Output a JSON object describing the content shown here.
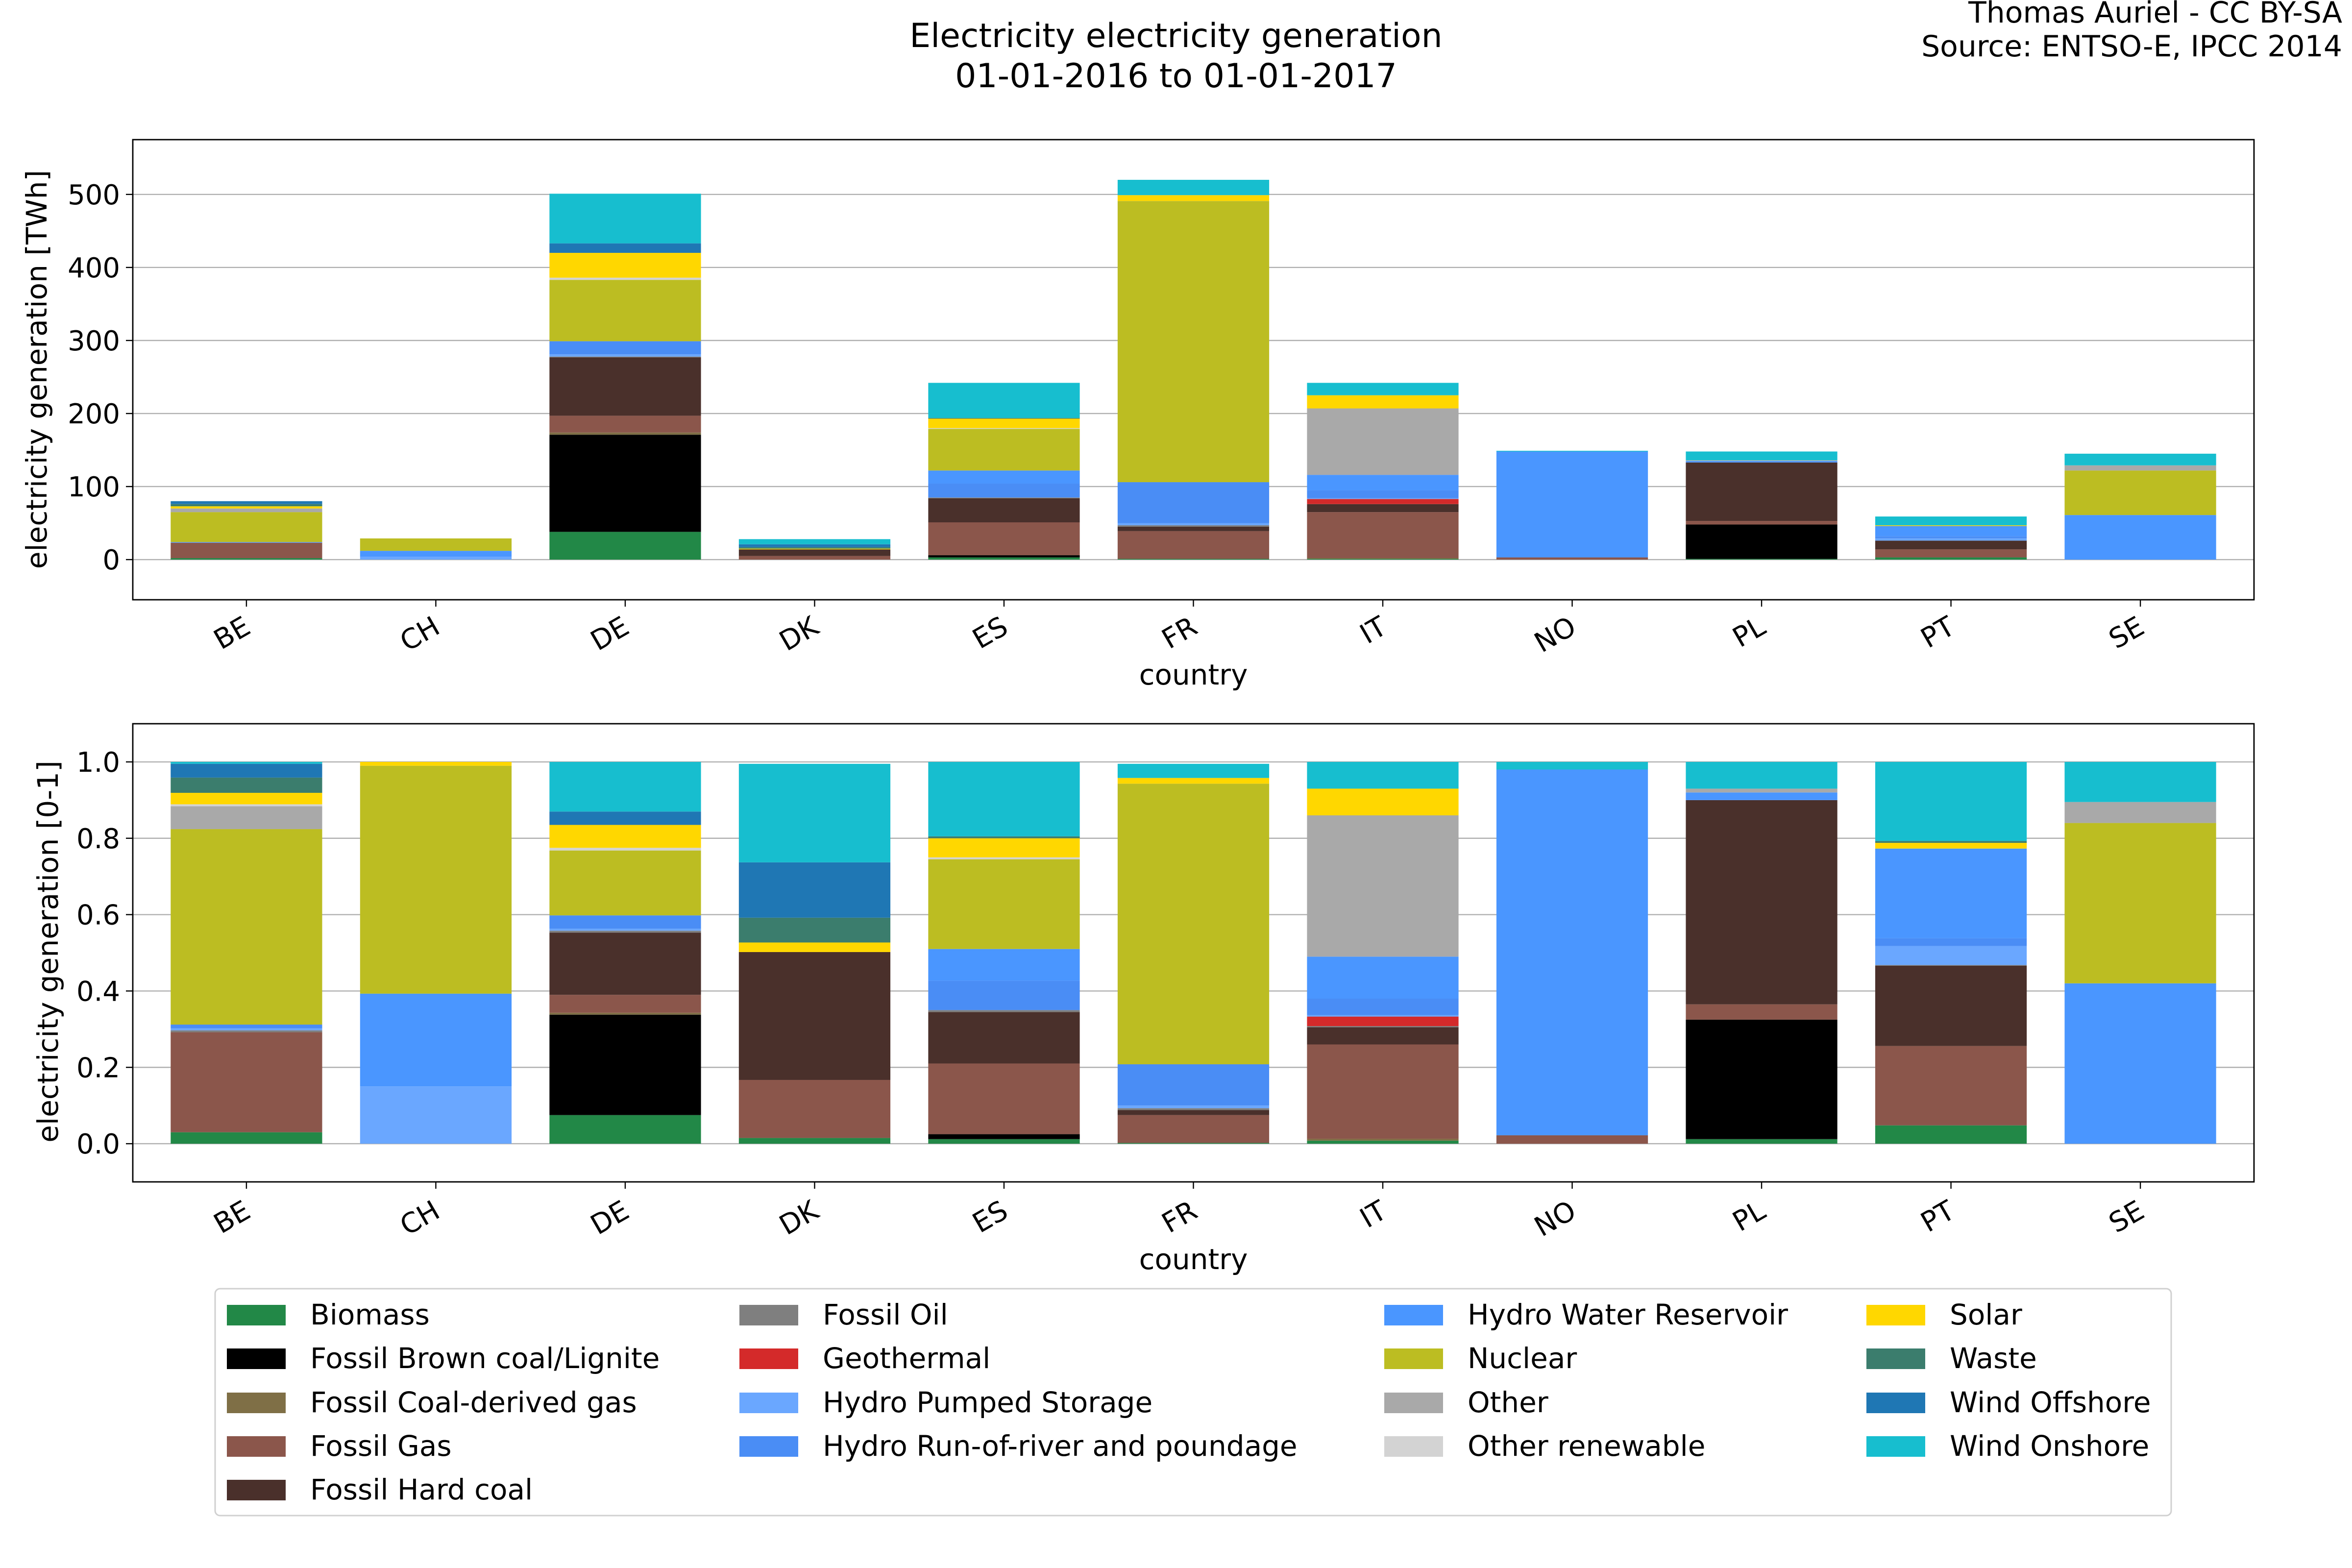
{
  "header": {
    "title_line1": "Electricity electricity generation",
    "title_line2": "01-01-2016 to 01-01-2017",
    "credit_line1": "Thomas Auriel - CC BY-SA",
    "credit_line2": "Source: ENTSO-E, IPCC 2014"
  },
  "legend": {
    "entries": [
      {
        "label": "Biomass",
        "color": "#228847"
      },
      {
        "label": "Fossil Brown coal/Lignite",
        "color": "#000000"
      },
      {
        "label": "Fossil Coal-derived gas",
        "color": "#7f6f46"
      },
      {
        "label": "Fossil Gas",
        "color": "#8b564b"
      },
      {
        "label": "Fossil Hard coal",
        "color": "#4a302b"
      },
      {
        "label": "Fossil Oil",
        "color": "#7f7f7f"
      },
      {
        "label": "Geothermal",
        "color": "#d42a2a"
      },
      {
        "label": "Hydro Pumped Storage",
        "color": "#6aa7ff"
      },
      {
        "label": "Hydro Run-of-river and poundage",
        "color": "#4a8df5"
      },
      {
        "label": "Hydro Water Reservoir",
        "color": "#4a96ff"
      },
      {
        "label": "Nuclear",
        "color": "#bcbd22"
      },
      {
        "label": "Other",
        "color": "#a9a9a9"
      },
      {
        "label": "Other renewable",
        "color": "#d3d3d3"
      },
      {
        "label": "Solar",
        "color": "#ffd700"
      },
      {
        "label": "Waste",
        "color": "#3b7d6d"
      },
      {
        "label": "Wind Offshore",
        "color": "#1f77b4"
      },
      {
        "label": "Wind Onshore",
        "color": "#17becf"
      }
    ]
  },
  "chart_data": [
    {
      "type": "bar",
      "stacked": true,
      "xlabel": "country",
      "ylabel": "electricity generation [TWh]",
      "ylim": [
        -55,
        575
      ],
      "yticks": [
        0,
        100,
        200,
        300,
        400,
        500
      ],
      "grid": "y",
      "categories": [
        "BE",
        "CH",
        "DE",
        "DK",
        "ES",
        "FR",
        "IT",
        "NO",
        "PL",
        "PT",
        "SE"
      ],
      "series": [
        {
          "name": "Biomass",
          "values": [
            2,
            0,
            38,
            0,
            3,
            1,
            1,
            0,
            1,
            3,
            0
          ]
        },
        {
          "name": "Fossil Brown coal/Lignite",
          "values": [
            0,
            0,
            133,
            0,
            3,
            0,
            0,
            0,
            47,
            0,
            0
          ]
        },
        {
          "name": "Fossil Coal-derived gas",
          "values": [
            0,
            0,
            3,
            0,
            0,
            0,
            1,
            0,
            0,
            0,
            0
          ]
        },
        {
          "name": "Fossil Gas",
          "values": [
            21,
            0,
            23,
            5,
            45,
            38,
            63,
            3,
            5,
            11,
            0
          ]
        },
        {
          "name": "Fossil Hard coal",
          "values": [
            0,
            0,
            80,
            9,
            33,
            6,
            11,
            0,
            80,
            12,
            0
          ]
        },
        {
          "name": "Fossil Oil",
          "values": [
            0,
            0,
            1,
            0,
            1,
            2,
            0,
            0,
            0,
            0,
            0
          ]
        },
        {
          "name": "Geothermal",
          "values": [
            0,
            0,
            0,
            0,
            0,
            0,
            7,
            0,
            0,
            0,
            0
          ]
        },
        {
          "name": "Hydro Pumped Storage",
          "values": [
            0,
            4,
            3,
            0,
            0,
            3,
            1,
            0,
            0,
            3,
            0
          ]
        },
        {
          "name": "Hydro Run-of-river and poundage",
          "values": [
            1,
            0,
            18,
            0,
            19,
            56,
            11,
            0,
            0,
            3,
            0
          ]
        },
        {
          "name": "Hydro Water Reservoir",
          "values": [
            0,
            8,
            0,
            0,
            18,
            0,
            21,
            145,
            2,
            14,
            61
          ]
        },
        {
          "name": "Nuclear",
          "values": [
            41,
            17,
            84,
            0,
            57,
            385,
            0,
            0,
            0,
            0,
            61
          ]
        },
        {
          "name": "Other",
          "values": [
            5,
            0,
            0,
            0,
            0,
            0,
            91,
            0,
            1,
            0,
            7
          ]
        },
        {
          "name": "Other renewable",
          "values": [
            0,
            0,
            3,
            0,
            1,
            0,
            0,
            0,
            0,
            0,
            0
          ]
        },
        {
          "name": "Solar",
          "values": [
            3,
            0,
            34,
            1,
            13,
            8,
            18,
            0,
            0,
            1,
            0
          ]
        },
        {
          "name": "Waste",
          "values": [
            3,
            0,
            0,
            2,
            1,
            0,
            0,
            0,
            0,
            0,
            0
          ]
        },
        {
          "name": "Wind Offshore",
          "values": [
            4,
            0,
            13,
            4,
            0,
            0,
            0,
            0,
            0,
            0,
            0
          ]
        },
        {
          "name": "Wind Onshore",
          "values": [
            0,
            0,
            68,
            7,
            48,
            21,
            17,
            1,
            12,
            12,
            16
          ]
        }
      ]
    },
    {
      "type": "bar",
      "stacked": true,
      "xlabel": "country",
      "ylabel": "electricity generation [0-1]",
      "ylim": [
        -0.1,
        1.1
      ],
      "yticks": [
        0.0,
        0.2,
        0.4,
        0.6,
        0.8,
        1.0
      ],
      "grid": "y",
      "categories": [
        "BE",
        "CH",
        "DE",
        "DK",
        "ES",
        "FR",
        "IT",
        "NO",
        "PL",
        "PT",
        "SE"
      ],
      "series": [
        {
          "name": "Biomass",
          "values": [
            0.03,
            0,
            0.075,
            0.015,
            0.012,
            0.002,
            0.008,
            0,
            0.012,
            0.048,
            0
          ]
        },
        {
          "name": "Fossil Brown coal/Lignite",
          "values": [
            0,
            0,
            0.263,
            0,
            0.013,
            0,
            0,
            0,
            0.313,
            0,
            0
          ]
        },
        {
          "name": "Fossil Coal-derived gas",
          "values": [
            0,
            0,
            0.005,
            0,
            0,
            0,
            0.005,
            0,
            0,
            0,
            0
          ]
        },
        {
          "name": "Fossil Gas",
          "values": [
            0.262,
            0,
            0.047,
            0.152,
            0.185,
            0.073,
            0.247,
            0.022,
            0.04,
            0.208,
            0
          ]
        },
        {
          "name": "Fossil Hard coal",
          "values": [
            0,
            0,
            0.163,
            0.335,
            0.135,
            0.013,
            0.045,
            0,
            0.535,
            0.21,
            0
          ]
        },
        {
          "name": "Fossil Oil",
          "values": [
            0.005,
            0,
            0.005,
            0,
            0.005,
            0.005,
            0.003,
            0,
            0,
            0.002,
            0
          ]
        },
        {
          "name": "Geothermal",
          "values": [
            0,
            0,
            0,
            0,
            0,
            0,
            0.025,
            0,
            0,
            0,
            0
          ]
        },
        {
          "name": "Hydro Pumped Storage",
          "values": [
            0.005,
            0.15,
            0.005,
            0,
            0,
            0.007,
            0.004,
            0,
            0,
            0.05,
            0
          ]
        },
        {
          "name": "Hydro Run-of-river and poundage",
          "values": [
            0.01,
            0,
            0.035,
            0,
            0.077,
            0.108,
            0.043,
            0,
            0,
            0.02,
            0
          ]
        },
        {
          "name": "Hydro Water Reservoir",
          "values": [
            0,
            0.243,
            0,
            0,
            0.083,
            0,
            0.11,
            0.958,
            0.02,
            0.235,
            0.42
          ]
        },
        {
          "name": "Nuclear",
          "values": [
            0.512,
            0.597,
            0.17,
            0,
            0.235,
            0.735,
            0,
            0,
            0,
            0,
            0.42
          ]
        },
        {
          "name": "Other",
          "values": [
            0.06,
            0,
            0,
            0,
            0,
            0,
            0.37,
            0,
            0.01,
            0,
            0.055
          ]
        },
        {
          "name": "Other renewable",
          "values": [
            0.005,
            0,
            0.007,
            0,
            0.005,
            0,
            0,
            0,
            0,
            0,
            0
          ]
        },
        {
          "name": "Solar",
          "values": [
            0.03,
            0.01,
            0.06,
            0.025,
            0.05,
            0.015,
            0.07,
            0,
            0,
            0.015,
            0
          ]
        },
        {
          "name": "Waste",
          "values": [
            0.04,
            0,
            0,
            0.065,
            0.005,
            0,
            0,
            0,
            0,
            0.005,
            0
          ]
        },
        {
          "name": "Wind Offshore",
          "values": [
            0.036,
            0,
            0.035,
            0.145,
            0,
            0,
            0,
            0,
            0,
            0,
            0
          ]
        },
        {
          "name": "Wind Onshore",
          "values": [
            0.005,
            0,
            0.13,
            0.258,
            0.195,
            0.037,
            0.07,
            0.02,
            0.07,
            0.207,
            0.105
          ]
        }
      ]
    }
  ]
}
